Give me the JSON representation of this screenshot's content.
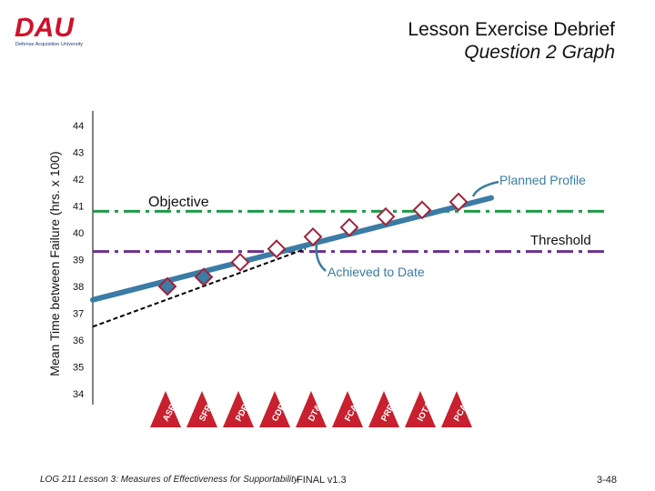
{
  "header": {
    "logo_text": "DAU",
    "logo_subtitle": "Defense Acquisition University",
    "title_line1": "Lesson Exercise Debrief",
    "title_line2": "Question 2 Graph"
  },
  "colors": {
    "objective": "#1f9a48",
    "threshold": "#6a2f8f",
    "planned": "#3a7ca5",
    "marker_red": "#a0233a",
    "milestone_red": "#c8202f",
    "logo_red": "#d0102a"
  },
  "chart_data": {
    "type": "line",
    "ylabel": "Mean Time between Failure (hrs. x 100)",
    "ylim": [
      33.6,
      44.6
    ],
    "y_ticks": [
      44,
      43,
      42,
      41,
      40,
      39,
      38,
      37,
      36,
      35,
      34
    ],
    "milestones": [
      "ASR",
      "SFR",
      "PDR",
      "CDR",
      "DT&E",
      "FCA",
      "PRR",
      "IOT&E",
      "PCA"
    ],
    "objective": {
      "label": "Objective",
      "value": 40.8
    },
    "threshold": {
      "label": "Threshold",
      "value": 39.3
    },
    "planned_profile": {
      "label": "Planned Profile",
      "start_x": 0,
      "start_y": 37.5,
      "end_x": 8.5,
      "end_y": 41.2
    },
    "achieved_to_date": {
      "label": "Achieved to Date",
      "start_x": 0,
      "start_y": 36.5,
      "end_x": 3.7,
      "end_y": 39.4
    },
    "markers": [
      {
        "milestone": "ASR",
        "x": 0.5,
        "y": 38.0,
        "style": "filled"
      },
      {
        "milestone": "SFR",
        "x": 1.5,
        "y": 38.35,
        "style": "filled"
      },
      {
        "milestone": "PDR",
        "x": 2.5,
        "y": 38.9,
        "style": "open"
      },
      {
        "milestone": "CDR",
        "x": 3.5,
        "y": 39.4,
        "style": "open"
      },
      {
        "milestone": "DT&E",
        "x": 4.5,
        "y": 39.85,
        "style": "open"
      },
      {
        "milestone": "FCA",
        "x": 5.5,
        "y": 40.2,
        "style": "open"
      },
      {
        "milestone": "PRR",
        "x": 6.5,
        "y": 40.6,
        "style": "open"
      },
      {
        "milestone": "IOT&E",
        "x": 7.5,
        "y": 40.85,
        "style": "open"
      },
      {
        "milestone": "PCA",
        "x": 8.5,
        "y": 41.15,
        "style": "open"
      }
    ]
  },
  "footer": {
    "left": "LOG 211 Lesson 3: Measures of Effectiveness for Supportability",
    "mid": "FINAL v1.3",
    "right": "3-48"
  }
}
